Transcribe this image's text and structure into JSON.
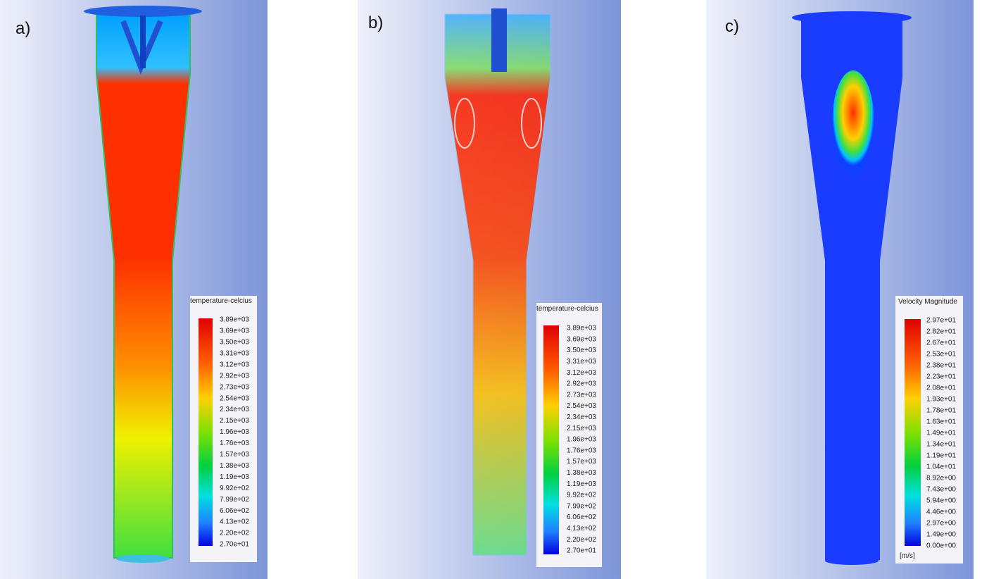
{
  "panels": [
    {
      "label": "a)",
      "legend": {
        "title": "temperature-celcius",
        "ticks": [
          "3.89e+03",
          "3.69e+03",
          "3.50e+03",
          "3.31e+03",
          "3.12e+03",
          "2.92e+03",
          "2.73e+03",
          "2.54e+03",
          "2.34e+03",
          "2.15e+03",
          "1.96e+03",
          "1.76e+03",
          "1.57e+03",
          "1.38e+03",
          "1.19e+03",
          "9.92e+02",
          "7.99e+02",
          "6.06e+02",
          "4.13e+02",
          "2.20e+02",
          "2.70e+01"
        ]
      }
    },
    {
      "label": "b)",
      "legend": {
        "title": "temperature-celcius",
        "ticks": [
          "3.89e+03",
          "3.69e+03",
          "3.50e+03",
          "3.31e+03",
          "3.12e+03",
          "2.92e+03",
          "2.73e+03",
          "2.54e+03",
          "2.34e+03",
          "2.15e+03",
          "1.96e+03",
          "1.76e+03",
          "1.57e+03",
          "1.38e+03",
          "1.19e+03",
          "9.92e+02",
          "7.99e+02",
          "6.06e+02",
          "4.13e+02",
          "2.20e+02",
          "2.70e+01"
        ]
      }
    },
    {
      "label": "c)",
      "legend": {
        "title": "Velocity Magnitude",
        "ticks": [
          "2.97e+01",
          "2.82e+01",
          "2.67e+01",
          "2.53e+01",
          "2.38e+01",
          "2.23e+01",
          "2.08e+01",
          "1.93e+01",
          "1.78e+01",
          "1.63e+01",
          "1.49e+01",
          "1.34e+01",
          "1.19e+01",
          "1.04e+01",
          "8.92e+00",
          "7.43e+00",
          "5.94e+00",
          "4.46e+00",
          "2.97e+00",
          "1.49e+00",
          "0.00e+00"
        ],
        "unit": "[m/s]"
      }
    }
  ]
}
